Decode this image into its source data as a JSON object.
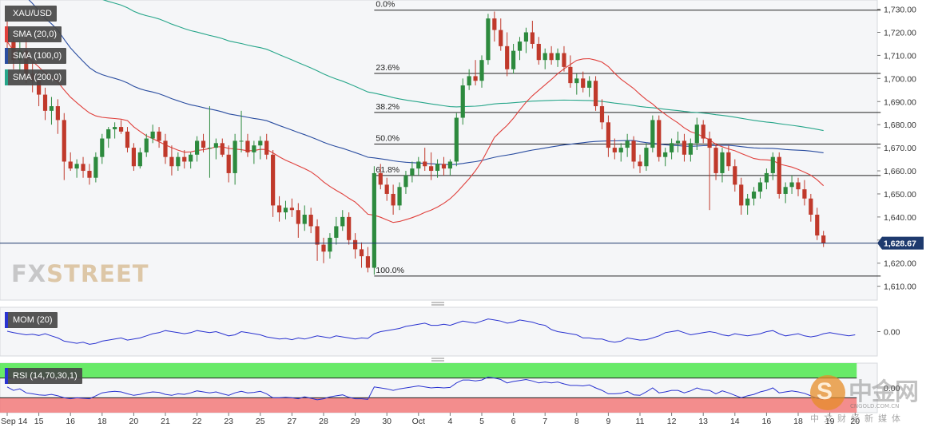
{
  "chart_data": [
    {
      "type": "candlestick",
      "symbol": "XAU/USD",
      "y_axis": {
        "min": 1604,
        "max": 1734,
        "ticks": [
          "1,610.00",
          "1,620.00",
          "1,630.00",
          "1,640.00",
          "1,650.00",
          "1,660.00",
          "1,670.00",
          "1,680.00",
          "1,690.00",
          "1,700.00",
          "1,710.00",
          "1,720.00",
          "1,730.00"
        ],
        "tick_values": [
          1610,
          1620,
          1630,
          1640,
          1650,
          1660,
          1670,
          1680,
          1690,
          1700,
          1710,
          1720,
          1730
        ]
      },
      "last_price": {
        "value": 1628.67,
        "label": "1,628.67"
      },
      "x_axis": {
        "ticks": [
          "Sep 14",
          "15",
          "16",
          "18",
          "20",
          "21",
          "22",
          "23",
          "25",
          "27",
          "28",
          "29",
          "30",
          "Oct",
          "4",
          "5",
          "6",
          "7",
          "8",
          "9",
          "11",
          "12",
          "13",
          "14",
          "16",
          "18",
          "19",
          "20"
        ],
        "tick_index": [
          0,
          5,
          10,
          15,
          20,
          25,
          30,
          35,
          40,
          45,
          50,
          55,
          60,
          65,
          70,
          75,
          80,
          85,
          90,
          95,
          100,
          105,
          110,
          115,
          120,
          125,
          130,
          134
        ]
      },
      "fibonacci": [
        {
          "label": "0.0%",
          "value": 1729.6
        },
        {
          "label": "23.6%",
          "value": 1702.2
        },
        {
          "label": "38.2%",
          "value": 1685.3
        },
        {
          "label": "50.0%",
          "value": 1671.6
        },
        {
          "label": "61.8%",
          "value": 1658.0
        },
        {
          "label": "100.0%",
          "value": 1614.4
        }
      ],
      "fib_start_index": 58,
      "fib_end_index": 134,
      "indicators": [
        {
          "label": "SMA (20,0)",
          "color": "#e0403c"
        },
        {
          "label": "SMA (100,0)",
          "color": "#2a4da0"
        },
        {
          "label": "SMA (200,0)",
          "color": "#27a68a"
        }
      ],
      "candles": [
        [
          1722,
          1728,
          1712,
          1716
        ],
        [
          1716,
          1720,
          1704,
          1708
        ],
        [
          1708,
          1716,
          1703,
          1712
        ],
        [
          1712,
          1718,
          1698,
          1702
        ],
        [
          1702,
          1707,
          1694,
          1699
        ],
        [
          1699,
          1703,
          1688,
          1693
        ],
        [
          1693,
          1696,
          1682,
          1686
        ],
        [
          1686,
          1692,
          1680,
          1688
        ],
        [
          1688,
          1691,
          1676,
          1682
        ],
        [
          1682,
          1685,
          1656,
          1664
        ],
        [
          1664,
          1668,
          1660,
          1661
        ],
        [
          1661,
          1665,
          1657,
          1663
        ],
        [
          1663,
          1666,
          1657,
          1660
        ],
        [
          1660,
          1663,
          1654,
          1657
        ],
        [
          1657,
          1668,
          1655,
          1666
        ],
        [
          1666,
          1676,
          1663,
          1674
        ],
        [
          1674,
          1679,
          1670,
          1678
        ],
        [
          1678,
          1681,
          1674,
          1679
        ],
        [
          1679,
          1682,
          1676,
          1677
        ],
        [
          1677,
          1679,
          1668,
          1670
        ],
        [
          1670,
          1672,
          1660,
          1662
        ],
        [
          1662,
          1670,
          1661,
          1668
        ],
        [
          1668,
          1676,
          1666,
          1674
        ],
        [
          1674,
          1680,
          1672,
          1677
        ],
        [
          1677,
          1679,
          1670,
          1673
        ],
        [
          1673,
          1676,
          1663,
          1666
        ],
        [
          1666,
          1671,
          1658,
          1662
        ],
        [
          1662,
          1668,
          1660,
          1666
        ],
        [
          1666,
          1669,
          1661,
          1664
        ],
        [
          1664,
          1668,
          1661,
          1667
        ],
        [
          1667,
          1675,
          1664,
          1673
        ],
        [
          1673,
          1676,
          1668,
          1670
        ],
        [
          1670,
          1688,
          1657,
          1670
        ],
        [
          1670,
          1674,
          1665,
          1672
        ],
        [
          1672,
          1674,
          1666,
          1667
        ],
        [
          1667,
          1671,
          1655,
          1659
        ],
        [
          1659,
          1676,
          1654,
          1673
        ],
        [
          1673,
          1686,
          1668,
          1673
        ],
        [
          1673,
          1676,
          1666,
          1668
        ],
        [
          1668,
          1673,
          1663,
          1671
        ],
        [
          1671,
          1675,
          1665,
          1673
        ],
        [
          1673,
          1676,
          1665,
          1667
        ],
        [
          1667,
          1669,
          1640,
          1645
        ],
        [
          1645,
          1649,
          1638,
          1642
        ],
        [
          1642,
          1647,
          1639,
          1644
        ],
        [
          1644,
          1648,
          1640,
          1643
        ],
        [
          1643,
          1646,
          1631,
          1637
        ],
        [
          1637,
          1645,
          1634,
          1641
        ],
        [
          1641,
          1644,
          1633,
          1636
        ],
        [
          1636,
          1639,
          1621,
          1628
        ],
        [
          1628,
          1631,
          1620,
          1625
        ],
        [
          1625,
          1633,
          1622,
          1631
        ],
        [
          1631,
          1640,
          1628,
          1636
        ],
        [
          1636,
          1643,
          1634,
          1640
        ],
        [
          1640,
          1642,
          1628,
          1630
        ],
        [
          1630,
          1633,
          1622,
          1626
        ],
        [
          1626,
          1629,
          1618,
          1623
        ],
        [
          1623,
          1627,
          1616,
          1618
        ],
        [
          1618,
          1662,
          1615,
          1659
        ],
        [
          1659,
          1663,
          1652,
          1654
        ],
        [
          1654,
          1657,
          1647,
          1650
        ],
        [
          1650,
          1654,
          1641,
          1645
        ],
        [
          1645,
          1655,
          1643,
          1653
        ],
        [
          1653,
          1660,
          1650,
          1658
        ],
        [
          1658,
          1664,
          1655,
          1661
        ],
        [
          1661,
          1666,
          1658,
          1664
        ],
        [
          1664,
          1670,
          1660,
          1662
        ],
        [
          1662,
          1668,
          1656,
          1660
        ],
        [
          1660,
          1665,
          1657,
          1663
        ],
        [
          1663,
          1666,
          1658,
          1661
        ],
        [
          1661,
          1665,
          1658,
          1664
        ],
        [
          1664,
          1685,
          1662,
          1683
        ],
        [
          1683,
          1700,
          1680,
          1697
        ],
        [
          1697,
          1704,
          1695,
          1701
        ],
        [
          1701,
          1708,
          1697,
          1699
        ],
        [
          1699,
          1710,
          1696,
          1708
        ],
        [
          1708,
          1728,
          1706,
          1726
        ],
        [
          1726,
          1729,
          1716,
          1721
        ],
        [
          1721,
          1726,
          1712,
          1714
        ],
        [
          1714,
          1720,
          1701,
          1704
        ],
        [
          1704,
          1715,
          1702,
          1712
        ],
        [
          1712,
          1718,
          1708,
          1716
        ],
        [
          1716,
          1722,
          1711,
          1720
        ],
        [
          1720,
          1725,
          1713,
          1715
        ],
        [
          1715,
          1718,
          1706,
          1708
        ],
        [
          1708,
          1713,
          1704,
          1711
        ],
        [
          1711,
          1714,
          1706,
          1708
        ],
        [
          1708,
          1713,
          1705,
          1711
        ],
        [
          1711,
          1714,
          1703,
          1705
        ],
        [
          1705,
          1710,
          1696,
          1698
        ],
        [
          1698,
          1702,
          1693,
          1700
        ],
        [
          1700,
          1703,
          1694,
          1696
        ],
        [
          1696,
          1701,
          1692,
          1699
        ],
        [
          1699,
          1701,
          1686,
          1688
        ],
        [
          1688,
          1691,
          1678,
          1681
        ],
        [
          1681,
          1684,
          1666,
          1670
        ],
        [
          1670,
          1674,
          1665,
          1668
        ],
        [
          1668,
          1672,
          1664,
          1670
        ],
        [
          1670,
          1676,
          1666,
          1673
        ],
        [
          1673,
          1675,
          1661,
          1664
        ],
        [
          1664,
          1667,
          1659,
          1662
        ],
        [
          1662,
          1672,
          1660,
          1670
        ],
        [
          1670,
          1684,
          1668,
          1682
        ],
        [
          1682,
          1684,
          1664,
          1666
        ],
        [
          1666,
          1670,
          1662,
          1668
        ],
        [
          1668,
          1674,
          1665,
          1672
        ],
        [
          1672,
          1677,
          1668,
          1673
        ],
        [
          1673,
          1676,
          1664,
          1667
        ],
        [
          1667,
          1674,
          1664,
          1672
        ],
        [
          1672,
          1683,
          1669,
          1680
        ],
        [
          1680,
          1682,
          1672,
          1674
        ],
        [
          1674,
          1677,
          1643,
          1670
        ],
        [
          1670,
          1672,
          1656,
          1659
        ],
        [
          1659,
          1670,
          1655,
          1668
        ],
        [
          1668,
          1671,
          1660,
          1662
        ],
        [
          1662,
          1665,
          1651,
          1654
        ],
        [
          1654,
          1657,
          1641,
          1645
        ],
        [
          1645,
          1650,
          1641,
          1648
        ],
        [
          1648,
          1653,
          1645,
          1651
        ],
        [
          1651,
          1657,
          1648,
          1655
        ],
        [
          1655,
          1661,
          1652,
          1659
        ],
        [
          1659,
          1668,
          1656,
          1666
        ],
        [
          1666,
          1668,
          1648,
          1650
        ],
        [
          1650,
          1655,
          1646,
          1653
        ],
        [
          1653,
          1658,
          1650,
          1655
        ],
        [
          1655,
          1657,
          1649,
          1652
        ],
        [
          1652,
          1656,
          1645,
          1648
        ],
        [
          1648,
          1650,
          1638,
          1641
        ],
        [
          1641,
          1644,
          1630,
          1632
        ],
        [
          1632,
          1634,
          1627,
          1628.67
        ]
      ]
    },
    {
      "type": "line",
      "indicator": "MOM (20)",
      "tick_label": "0.00",
      "y_range": [
        -1,
        1
      ],
      "values": [
        0.02,
        -0.05,
        -0.1,
        -0.15,
        -0.12,
        -0.18,
        -0.1,
        -0.2,
        -0.3,
        -0.45,
        -0.5,
        -0.55,
        -0.5,
        -0.6,
        -0.55,
        -0.45,
        -0.4,
        -0.35,
        -0.3,
        -0.4,
        -0.35,
        -0.3,
        -0.2,
        -0.1,
        -0.05,
        0.05,
        0.0,
        -0.05,
        -0.1,
        -0.05,
        0.05,
        0.0,
        -0.05,
        0.0,
        -0.1,
        -0.2,
        -0.15,
        0.0,
        -0.05,
        -0.1,
        -0.15,
        -0.25,
        -0.3,
        -0.35,
        -0.32,
        -0.38,
        -0.3,
        -0.35,
        -0.28,
        -0.2,
        -0.25,
        -0.3,
        -0.2,
        -0.25,
        -0.3,
        -0.35,
        -0.3,
        -0.32,
        -0.1,
        0.0,
        0.05,
        0.1,
        0.15,
        0.25,
        0.3,
        0.35,
        0.4,
        0.3,
        0.3,
        0.35,
        0.3,
        0.4,
        0.5,
        0.45,
        0.4,
        0.5,
        0.6,
        0.55,
        0.5,
        0.4,
        0.45,
        0.55,
        0.5,
        0.45,
        0.35,
        0.3,
        0.1,
        0.0,
        -0.05,
        -0.1,
        -0.15,
        -0.3,
        -0.3,
        -0.35,
        -0.35,
        -0.45,
        -0.5,
        -0.45,
        -0.3,
        -0.35,
        -0.4,
        -0.38,
        -0.3,
        -0.2,
        -0.05,
        0.0,
        0.05,
        -0.05,
        -0.15,
        -0.1,
        -0.05,
        0.0,
        -0.05,
        -0.15,
        -0.2,
        -0.1,
        -0.15,
        -0.2,
        -0.15,
        -0.1,
        0.0,
        0.05,
        -0.1,
        -0.2,
        -0.15,
        -0.1,
        -0.2,
        -0.25,
        -0.2,
        -0.1,
        -0.05,
        -0.1,
        -0.15,
        -0.2,
        -0.15
      ]
    },
    {
      "type": "line",
      "indicator": "RSI (14,70,30,1)",
      "tick_label": "0.00",
      "y_range": [
        0,
        100
      ],
      "overbought": 70,
      "oversold": 30,
      "values": [
        52,
        45,
        48,
        40,
        38,
        36,
        35,
        37,
        34,
        30,
        28,
        30,
        29,
        28,
        34,
        40,
        42,
        43,
        42,
        38,
        35,
        37,
        40,
        42,
        41,
        37,
        35,
        38,
        37,
        40,
        44,
        42,
        40,
        42,
        38,
        35,
        40,
        43,
        40,
        41,
        43,
        38,
        30,
        30,
        31,
        30,
        28,
        32,
        29,
        26,
        28,
        32,
        34,
        36,
        31,
        28,
        28,
        27,
        52,
        50,
        48,
        45,
        48,
        50,
        52,
        54,
        52,
        50,
        51,
        50,
        51,
        60,
        66,
        66,
        64,
        66,
        72,
        70,
        67,
        60,
        63,
        65,
        67,
        64,
        60,
        62,
        60,
        62,
        58,
        55,
        55,
        54,
        56,
        50,
        45,
        38,
        38,
        39,
        43,
        36,
        35,
        42,
        50,
        40,
        42,
        45,
        45,
        40,
        44,
        50,
        46,
        45,
        38,
        44,
        40,
        35,
        30,
        34,
        37,
        42,
        45,
        50,
        40,
        42,
        44,
        42,
        39,
        34,
        29,
        27
      ]
    }
  ],
  "watermark": {
    "fx": "FX",
    "street": "STREET"
  },
  "cngold": {
    "logo_glyph": "S",
    "title": "中金网",
    "subtitle": "中文财经新媒体",
    "url": "CNGOLD.COM.CN"
  }
}
